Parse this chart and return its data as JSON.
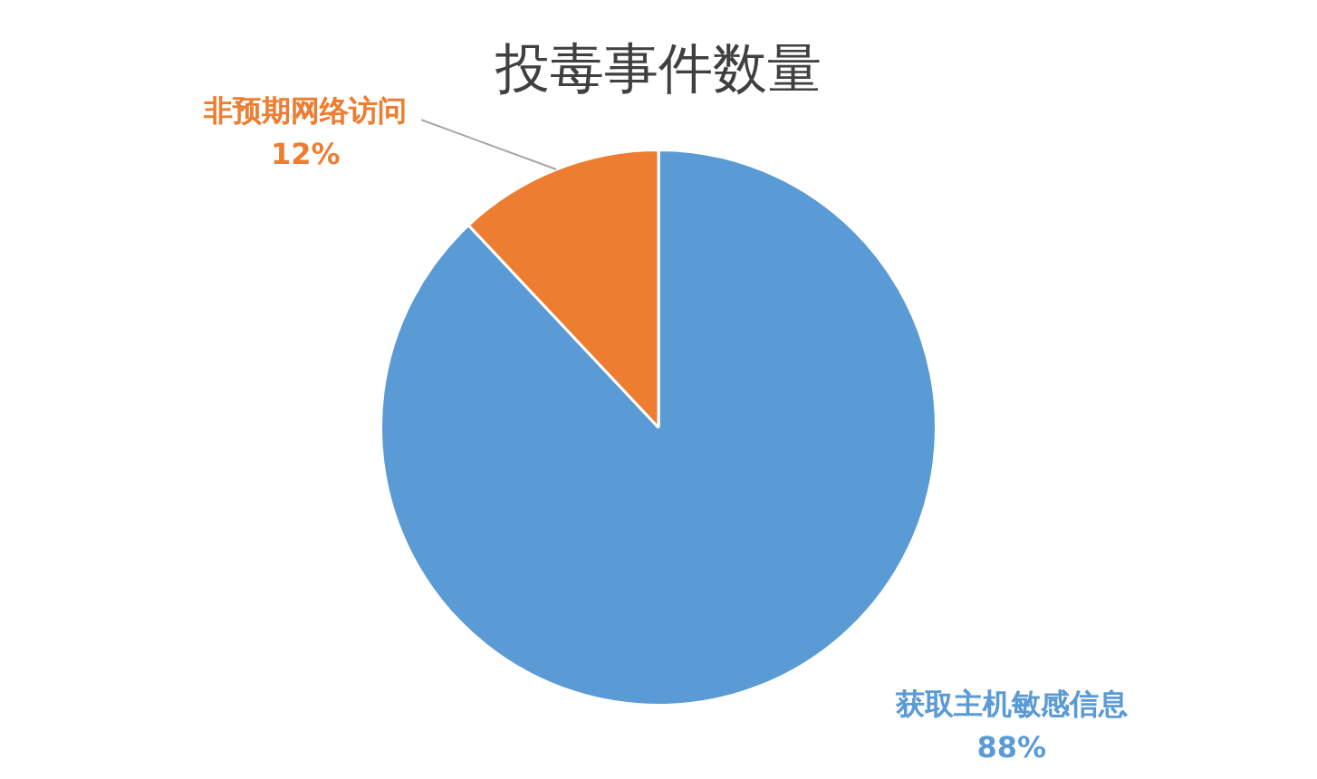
{
  "chart_data": {
    "type": "pie",
    "title": "投毒事件数量",
    "categories": [
      "获取主机敏感信息",
      "非预期网络访问"
    ],
    "values": [
      88,
      12
    ],
    "colors": [
      "#5b9bd5",
      "#ed7d31"
    ],
    "value_labels": [
      "88%",
      "12%"
    ],
    "legend": false
  }
}
